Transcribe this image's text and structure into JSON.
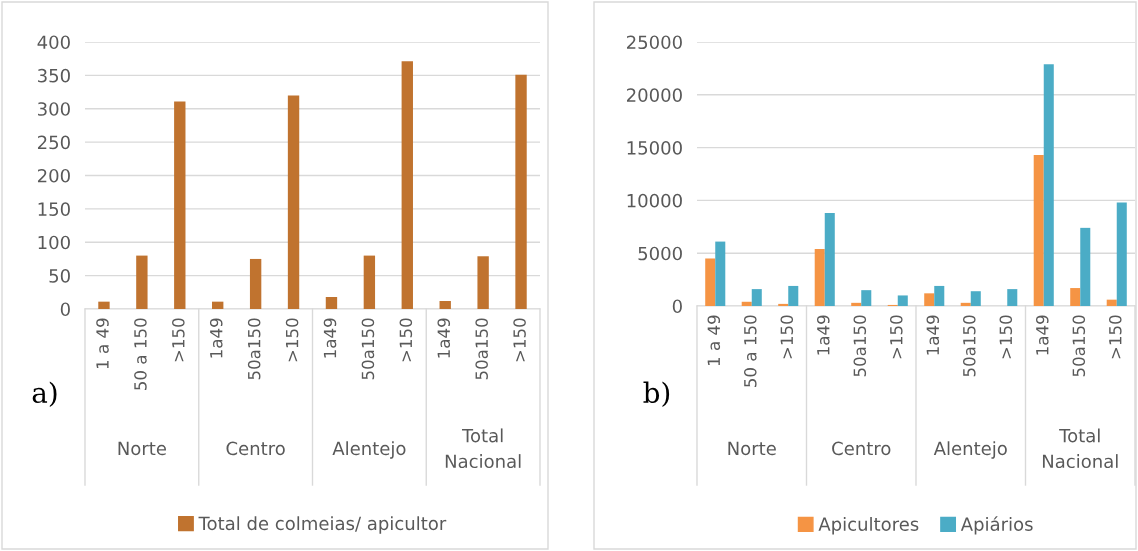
{
  "chart_data": [
    {
      "type": "bar",
      "categories": [
        "1 a 49",
        "50 a 150",
        ">150",
        "1a49",
        "50a150",
        ">150",
        "1a49",
        "50a150",
        ">150",
        "1a49",
        "50a150",
        ">150"
      ],
      "series": [
        {
          "name": "Total de colmeias/ apicultor",
          "color": "#c0732f",
          "values": [
            11,
            80,
            311,
            11,
            75,
            320,
            18,
            80,
            371,
            12,
            79,
            351
          ]
        }
      ],
      "ylim": [
        0,
        400
      ],
      "yticks": [
        0,
        50,
        100,
        150,
        200,
        250,
        300,
        350,
        400
      ],
      "grid": "y",
      "legend": "bottom",
      "annotations": [
        "a)",
        "Norte",
        "Centro",
        "Alentejo",
        "Total\nNacional"
      ]
    },
    {
      "type": "bar",
      "categories": [
        "1 a 49",
        "50 a 150",
        ">150",
        "1a49",
        "50a150",
        ">150",
        "1a49",
        "50a150",
        ">150",
        "1a49",
        "50a150",
        ">150"
      ],
      "series": [
        {
          "name": "Apicultores",
          "color": "#f59444",
          "values": [
            4500,
            400,
            200,
            5400,
            300,
            100,
            1200,
            300,
            0,
            14300,
            1700,
            600
          ]
        },
        {
          "name": "Apiários",
          "color": "#4bacc6",
          "values": [
            6100,
            1600,
            1900,
            8800,
            1500,
            1000,
            1900,
            1400,
            1600,
            22900,
            7400,
            9800
          ]
        }
      ],
      "ylim": [
        0,
        25000
      ],
      "yticks": [
        0,
        5000,
        10000,
        15000,
        20000,
        25000
      ],
      "grid": "y",
      "legend": "bottom",
      "annotations": [
        "b)",
        "Norte",
        "Centro",
        "Alentejo",
        "Total\nNacional"
      ]
    }
  ]
}
